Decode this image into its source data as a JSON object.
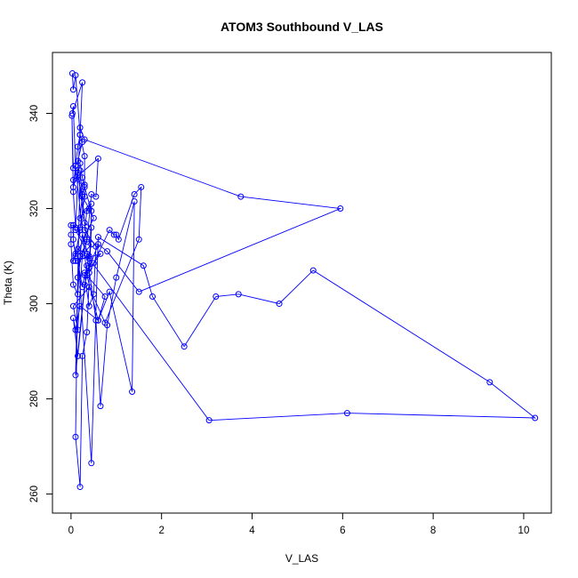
{
  "chart_data": {
    "type": "line",
    "title": "ATOM3 Southbound V_LAS",
    "xlabel": "V_LAS",
    "ylabel": "Theta (K)",
    "xlim": [
      -0.41,
      10.61
    ],
    "ylim": [
      256.0,
      352.8
    ],
    "x_ticks": [
      0,
      2,
      4,
      6,
      8,
      10
    ],
    "y_ticks": [
      260,
      280,
      300,
      320,
      340
    ],
    "line_color": "#0000FF",
    "marker": "open-circle",
    "series": [
      {
        "values_x": [
          0.03,
          0.05,
          0.1,
          0.2,
          0.25,
          0.03,
          0.05,
          0.1,
          0.15,
          0.2,
          0.3,
          0.3,
          0.2,
          0.1,
          0.05,
          0.05,
          0.1,
          0.4,
          0.1,
          0.65,
          0.5,
          0.3,
          0.75,
          0.6,
          0.2,
          0.1,
          0.05,
          0.15,
          0.35,
          0.45,
          0.15,
          0.25,
          0.3,
          0.4,
          0.5,
          0.55,
          0.3,
          0.35,
          0.45,
          0.2,
          0.25,
          0.3,
          0.05,
          0.6,
          0.55,
          0.45,
          0.35,
          0.2,
          0.15,
          0.05,
          0.0,
          0.0,
          0.0,
          0.05,
          0.2,
          0.1,
          0.05,
          0.5,
          0.4,
          0.25,
          0.15,
          0.2,
          0.25,
          0.3,
          0.45,
          0.4,
          0.85,
          0.95,
          1.0,
          1.05,
          1.4,
          1.55,
          1.5,
          0.75,
          0.4,
          0.05,
          0.15,
          0.25,
          0.35,
          0.15,
          0.05,
          0.1,
          0.35,
          0.6,
          0.85,
          1.35,
          1.4,
          1.0,
          0.8,
          0.65,
          0.55,
          0.35,
          0.15,
          0.45,
          0.6,
          1.6,
          1.8,
          2.5,
          3.2,
          3.7,
          4.6,
          5.35,
          9.25,
          10.25,
          6.1,
          3.05,
          0.4,
          0.25,
          0.15,
          0.1,
          0.2,
          0.25,
          0.35,
          0.45,
          0.3,
          0.2,
          0.1,
          0.3,
          0.4,
          0.6,
          0.8,
          1.5,
          5.95,
          3.75,
          0.3,
          0.2,
          0.1,
          0.05,
          0.02,
          0.05,
          0.1,
          0.15,
          0.25
        ],
        "values_y": [
          348.4,
          345.0,
          348.0,
          335.5,
          346.5,
          340.0,
          341.5,
          329.0,
          333.0,
          335.5,
          331.0,
          322.5,
          316.0,
          310.0,
          313.5,
          316.5,
          315.5,
          310.0,
          309.0,
          310.5,
          308.5,
          306.5,
          301.5,
          296.5,
          299.5,
          294.5,
          297.0,
          289.0,
          308.0,
          312.5,
          309.0,
          303.5,
          306.0,
          299.5,
          302.0,
          312.0,
          315.5,
          319.5,
          321.0,
          318.0,
          323.0,
          325.0,
          326.0,
          330.5,
          322.5,
          323.0,
          313.0,
          310.0,
          302.0,
          304.0,
          312.5,
          314.5,
          316.5,
          316.5,
          315.5,
          310.5,
          309.0,
          318.0,
          320.0,
          322.5,
          327.0,
          329.5,
          326.5,
          324.5,
          319.5,
          306.5,
          315.5,
          314.5,
          314.5,
          313.5,
          323.0,
          324.5,
          313.5,
          296.0,
          303.5,
          299.5,
          294.5,
          310.5,
          313.5,
          327.5,
          324.5,
          329.0,
          306.0,
          296.5,
          302.5,
          281.5,
          321.5,
          305.5,
          295.5,
          278.5,
          296.5,
          310.5,
          311.5,
          266.5,
          314.0,
          308.0,
          301.5,
          291.0,
          301.5,
          302.0,
          300.0,
          307.0,
          283.5,
          276.0,
          277.0,
          275.5,
          309.5,
          314.5,
          305.5,
          272.0,
          261.5,
          289.0,
          294.0,
          316.0,
          317.0,
          328.0,
          285.0,
          304.0,
          307.5,
          312.5,
          311.0,
          302.5,
          320.0,
          322.5,
          334.5,
          337.0,
          316.0,
          323.5,
          339.5,
          328.5,
          329.0,
          330.0,
          334.0
        ]
      }
    ]
  }
}
